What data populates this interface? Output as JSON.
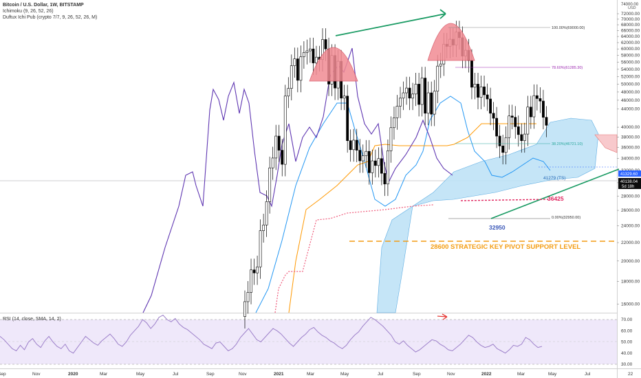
{
  "legend": {
    "title": "Bitcoin / U.S. Dollar, 1W, BITSTAMP",
    "ichimoku": "Ichimoku (9, 26, 52, 26)",
    "duftux": "Duftux Ichi Pub (crypto 7/7, 9, 26, 52, 26, M)",
    "rsi": "RSI (14, close, SMA, 14, 2)"
  },
  "price_axis": {
    "currency": "USD",
    "top_label": "74000.00",
    "ticks": [
      "72000.00",
      "70000.00",
      "68000.00",
      "66000.00",
      "64000.00",
      "62000.00",
      "60000.00",
      "58000.00",
      "56000.00",
      "54000.00",
      "52000.00",
      "50000.00",
      "48000.00",
      "46000.00",
      "44000.00",
      "40000.00",
      "38000.00",
      "36000.00",
      "34000.00",
      "32000.00",
      "30000.00",
      "28000.00",
      "26000.00",
      "24000.00",
      "22000.00",
      "20000.00",
      "18000.00",
      "16000.00"
    ],
    "price_badge_1": "41329.60",
    "price_badge_2": "40138.04",
    "price_badge_3": "5d 18h"
  },
  "rsi_axis": {
    "ticks": [
      "70.00",
      "60.00",
      "50.00",
      "40.00",
      "30.00"
    ]
  },
  "time_axis": {
    "labels": [
      "Sep",
      "Nov",
      "2020",
      "Mar",
      "May",
      "Jul",
      "Sep",
      "Nov",
      "2021",
      "Mar",
      "May",
      "Jul",
      "Sep",
      "Nov",
      "2022",
      "Mar",
      "May",
      "Jul",
      "22"
    ]
  },
  "annotations": {
    "fib_100": "100.00%(69000.00)",
    "fib_786": "78.60%(61285.30)",
    "fib_382": "38.20%(46721.10)",
    "fib_0": "0.00%(32950.00)",
    "ts_label": "41279 (TS)",
    "level_36425": "36425",
    "level_32950": "32950",
    "pivot_text": "28600 STRATEGIC KEY PIVOT SUPPORT LEVEL"
  },
  "colors": {
    "up_candle": "#ffffff",
    "down_candle": "#000000",
    "tenkan": "#2196f3",
    "kijun": "#ff9800",
    "chikou": "#5e35b1",
    "cloud_bull": "#bfe3f7",
    "cloud_bear": "#f8c9cc",
    "cup": "#f28b93",
    "trend_green": "#189a62",
    "pivot_orange": "#f39c12",
    "rsi_line": "#9c7fc9",
    "rsi_band": "#efe8fa"
  },
  "chart_data": {
    "type": "candlestick",
    "title": "Bitcoin / U.S. Dollar, 1W, BITSTAMP",
    "ylim": [
      15000,
      74000
    ],
    "y_scale": "log",
    "x_axis": "weekly, Sep 2019 – Jun 2022",
    "support_level": 28600,
    "fib_levels": [
      {
        "pct": 100,
        "price": 69000
      },
      {
        "pct": 78.6,
        "price": 61285.3
      },
      {
        "pct": 38.2,
        "price": 46721.1
      },
      {
        "pct": 0,
        "price": 32950
      }
    ],
    "key_levels": [
      36425,
      32950,
      41279
    ],
    "last_price": 40138.04,
    "rsi_ylim": [
      25,
      75
    ],
    "rsi_band": [
      30,
      70
    ]
  }
}
